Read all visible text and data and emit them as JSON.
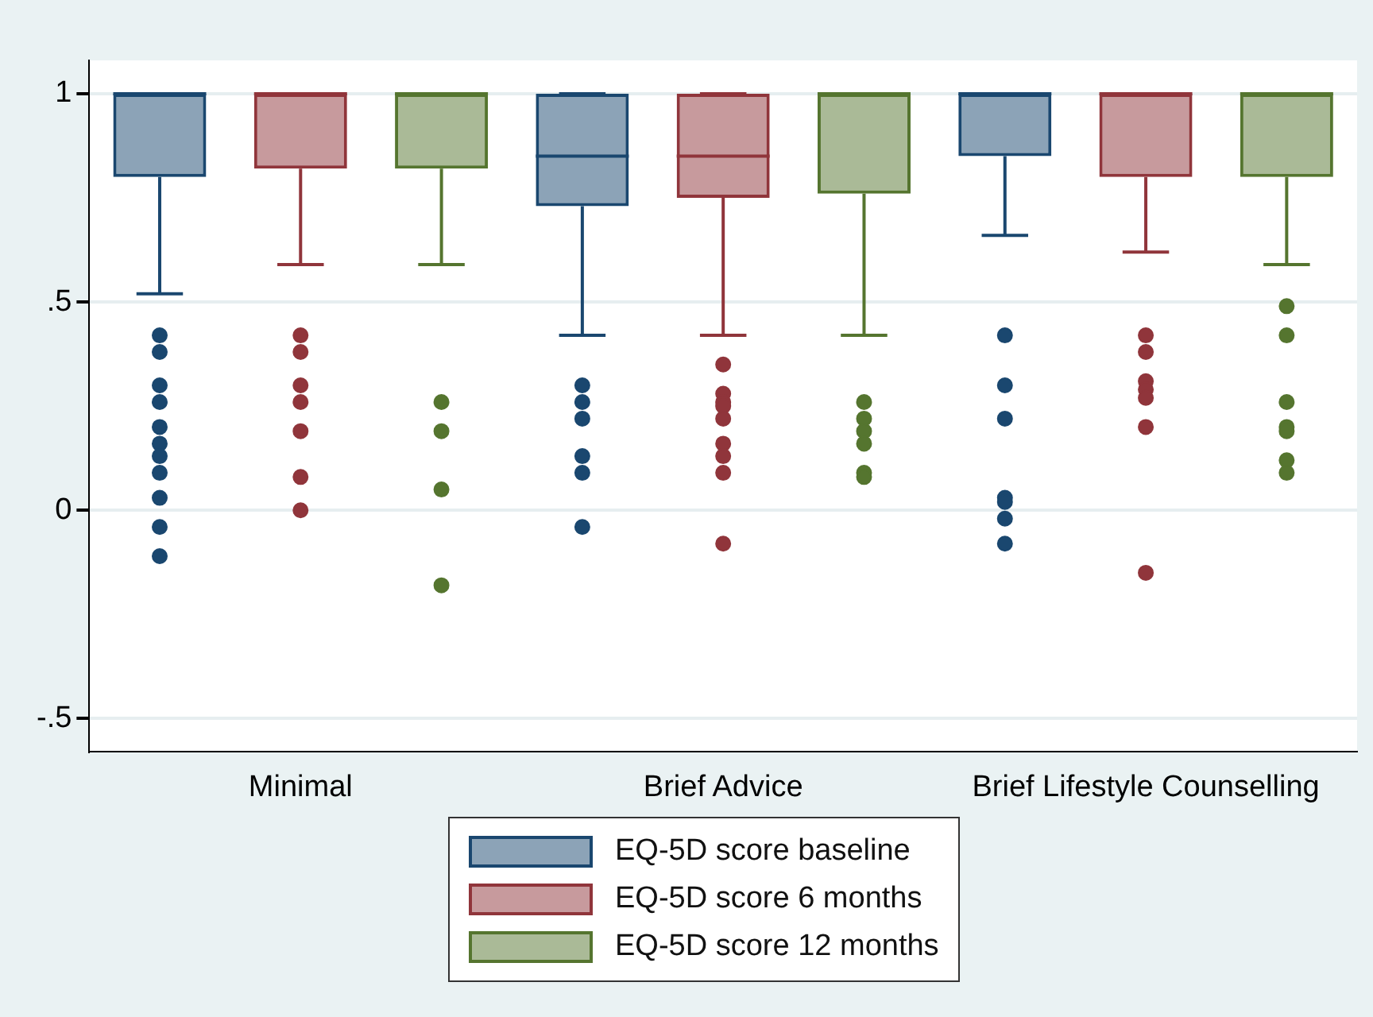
{
  "chart_data": {
    "type": "box",
    "categories": [
      "Minimal",
      "Brief Advice",
      "Brief Lifestyle Counselling"
    ],
    "series": [
      {
        "name": "EQ-5D score baseline",
        "color": "#1a476f",
        "boxes": [
          {
            "low": 0.52,
            "q1": 0.8,
            "median": 1,
            "q3": 1,
            "high": 1,
            "outliers": [
              0.42,
              0.38,
              0.3,
              0.26,
              0.2,
              0.16,
              0.13,
              0.09,
              0.03,
              -0.04,
              -0.11
            ]
          },
          {
            "low": 0.42,
            "q1": 0.73,
            "median": 0.85,
            "q3": 1,
            "high": 1,
            "outliers": [
              0.3,
              0.26,
              0.22,
              0.13,
              0.09,
              -0.04
            ]
          },
          {
            "low": 0.66,
            "q1": 0.85,
            "median": 1,
            "q3": 1,
            "high": 1,
            "outliers": [
              0.42,
              0.3,
              0.22,
              0.03,
              0.02,
              -0.02,
              -0.08
            ]
          }
        ]
      },
      {
        "name": "EQ-5D score 6 months",
        "color": "#90353b",
        "boxes": [
          {
            "low": 0.59,
            "q1": 0.82,
            "median": 1,
            "q3": 1,
            "high": 1,
            "outliers": [
              0.42,
              0.38,
              0.3,
              0.26,
              0.19,
              0.08,
              0
            ]
          },
          {
            "low": 0.42,
            "q1": 0.75,
            "median": 0.85,
            "q3": 1,
            "high": 1,
            "outliers": [
              0.35,
              0.28,
              0.26,
              0.25,
              0.22,
              0.16,
              0.13,
              0.09,
              -0.08
            ]
          },
          {
            "low": 0.62,
            "q1": 0.8,
            "median": 1,
            "q3": 1,
            "high": 1,
            "outliers": [
              0.42,
              0.38,
              0.31,
              0.29,
              0.27,
              0.2,
              -0.15
            ]
          }
        ]
      },
      {
        "name": "EQ-5D score 12 months",
        "color": "#55752f",
        "boxes": [
          {
            "low": 0.59,
            "q1": 0.82,
            "median": 1,
            "q3": 1,
            "high": 1,
            "outliers": [
              0.26,
              0.19,
              0.05,
              -0.18
            ]
          },
          {
            "low": 0.42,
            "q1": 0.76,
            "median": 1,
            "q3": 1,
            "high": 1,
            "outliers": [
              0.26,
              0.22,
              0.19,
              0.16,
              0.09,
              0.08
            ]
          },
          {
            "low": 0.59,
            "q1": 0.8,
            "median": 1,
            "q3": 1,
            "high": 1,
            "outliers": [
              0.49,
              0.42,
              0.26,
              0.2,
              0.19,
              0.12,
              0.09
            ]
          }
        ]
      }
    ],
    "ylim": [
      -0.58,
      1.08
    ],
    "yticks": [
      {
        "value": -0.5,
        "label": "-.5"
      },
      {
        "value": 0,
        "label": "0"
      },
      {
        "value": 0.5,
        "label": ".5"
      },
      {
        "value": 1,
        "label": "1"
      }
    ],
    "grid": "y",
    "legend": "bottom",
    "marker": "circle"
  }
}
